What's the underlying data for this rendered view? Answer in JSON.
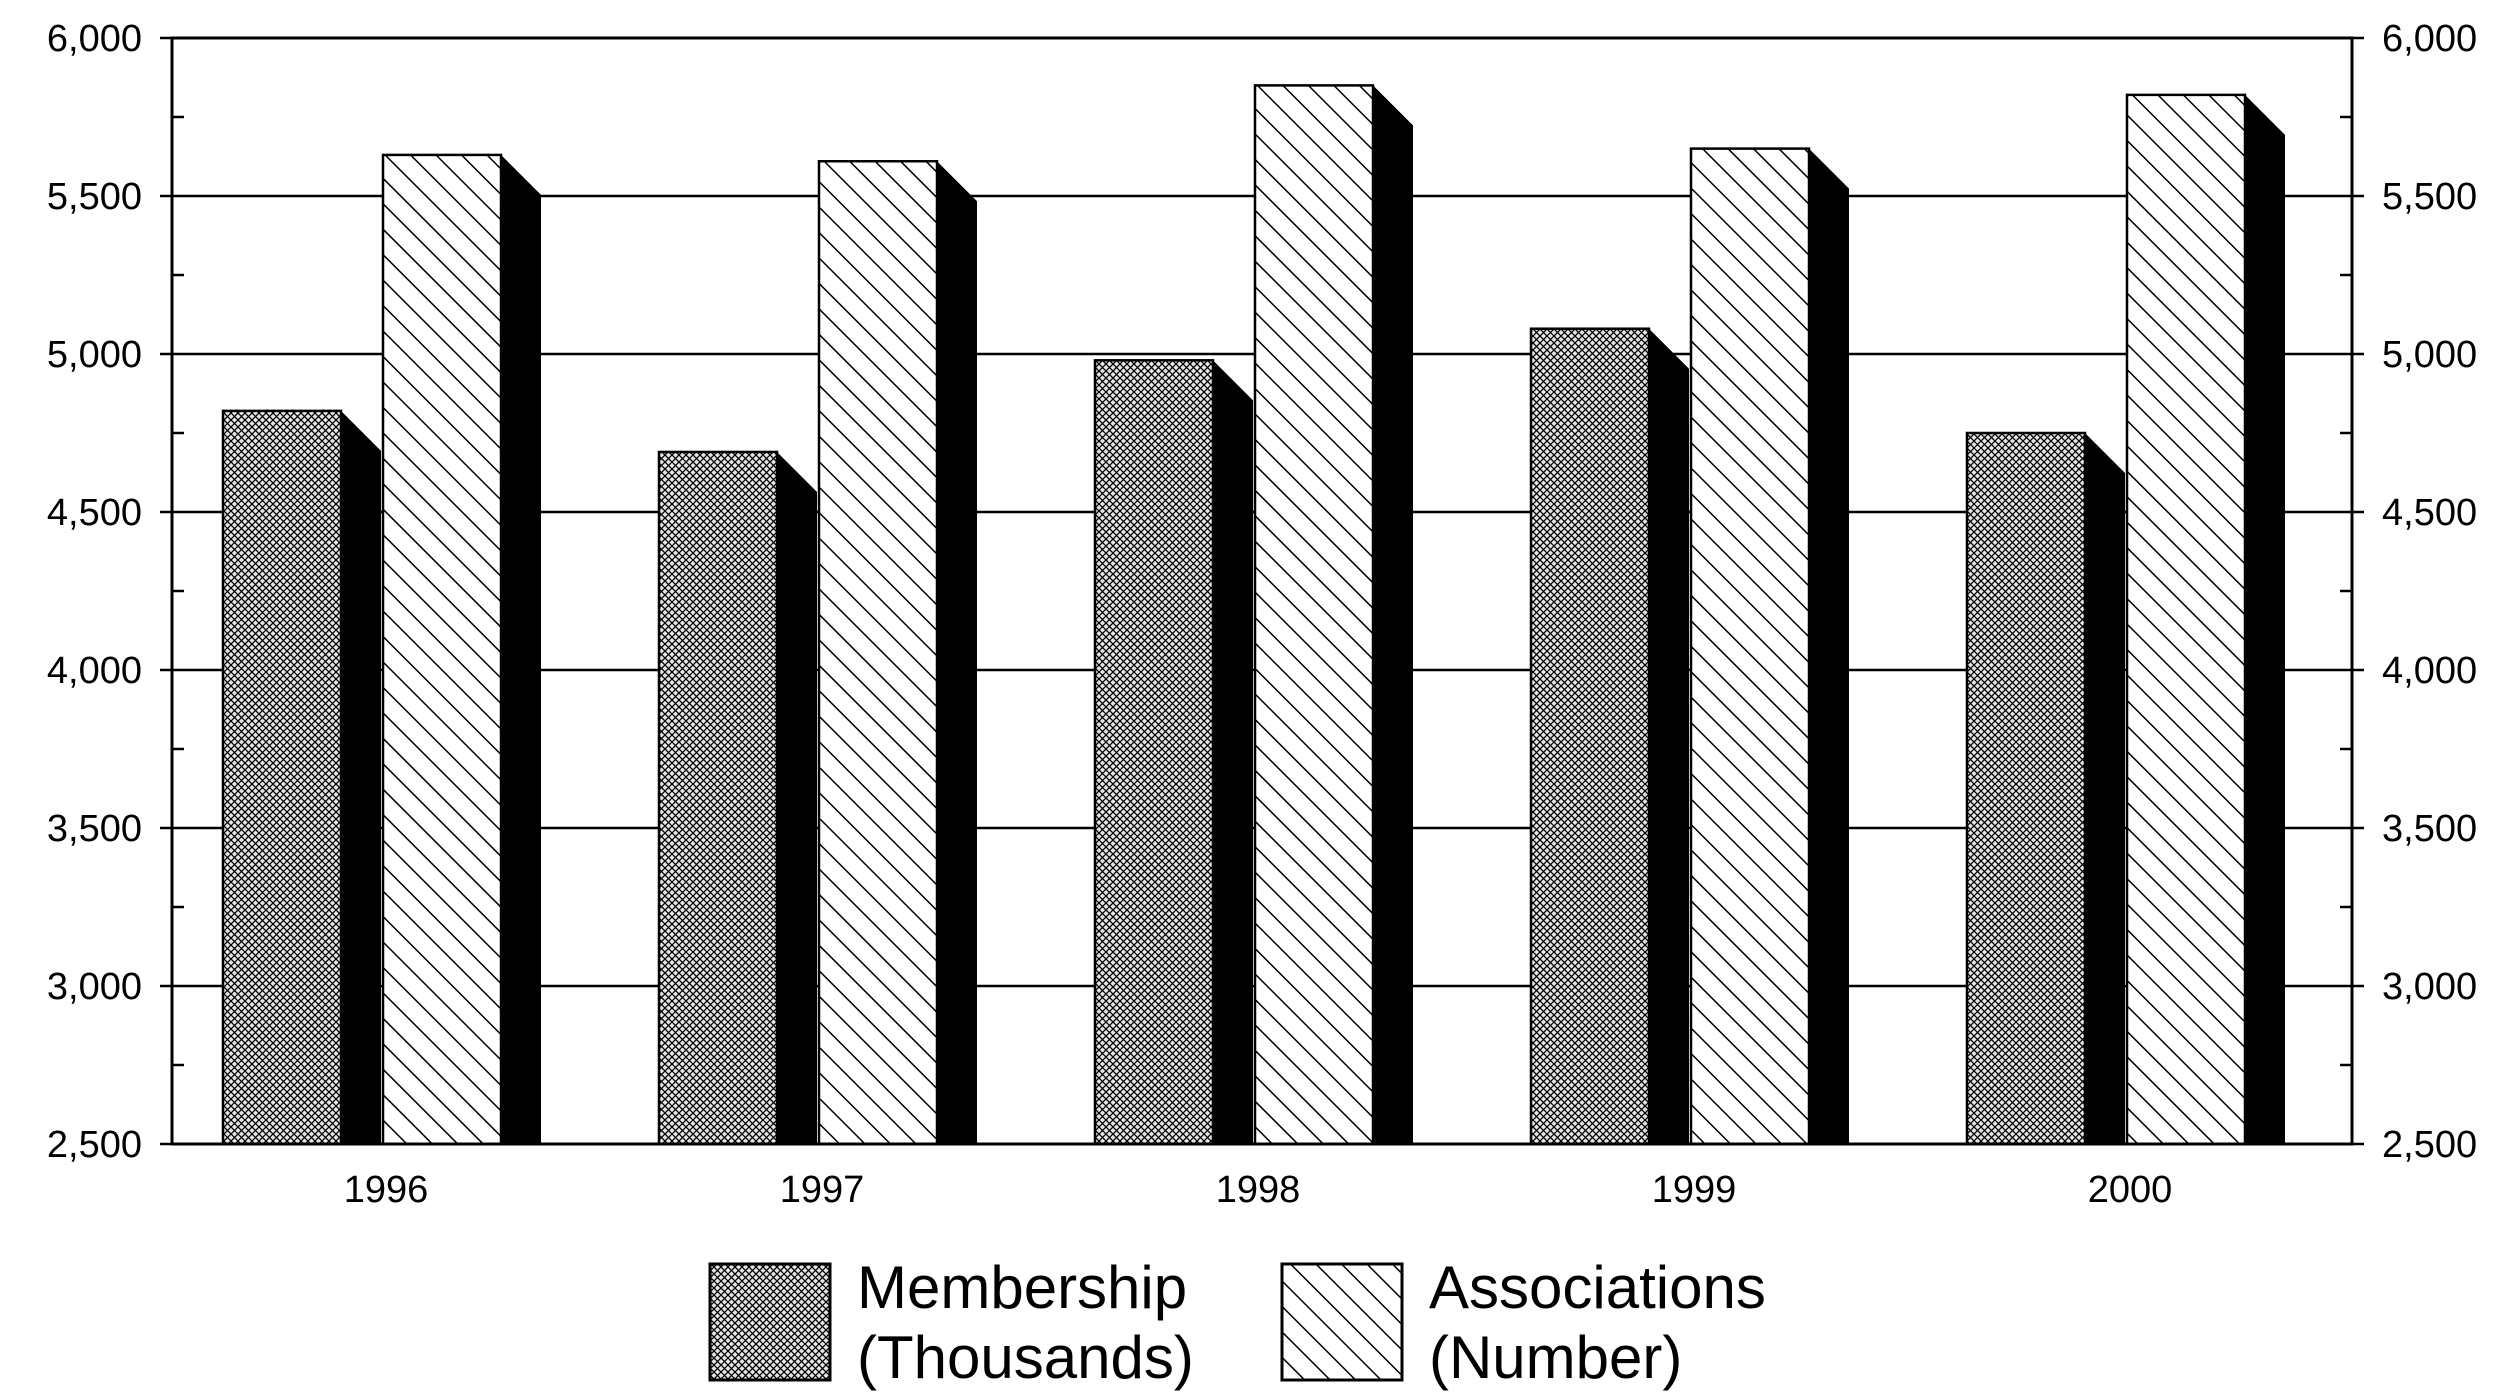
{
  "chart_data": {
    "type": "bar",
    "title": "",
    "xlabel": "",
    "ylabel": "",
    "categories": [
      "1996",
      "1997",
      "1998",
      "1999",
      "2000"
    ],
    "series": [
      {
        "name_line1": "Membership",
        "name_line2": "(Thousands)",
        "values": [
          4820,
          4690,
          4980,
          5080,
          4750
        ]
      },
      {
        "name_line1": "Associations",
        "name_line2": "(Number)",
        "values": [
          5630,
          5610,
          5850,
          5650,
          5820
        ]
      }
    ],
    "ylim": [
      2500,
      6000
    ],
    "yticks": [
      "2,500",
      "3,000",
      "3,500",
      "4,000",
      "4,500",
      "5,000",
      "5,500",
      "6,000"
    ],
    "ytick_values": [
      2500,
      3000,
      3500,
      4000,
      4500,
      5000,
      5500,
      6000
    ],
    "right_axis": true,
    "grid": true,
    "legend_position": "bottom",
    "patterns": [
      "crosshatch",
      "diagonal"
    ]
  }
}
